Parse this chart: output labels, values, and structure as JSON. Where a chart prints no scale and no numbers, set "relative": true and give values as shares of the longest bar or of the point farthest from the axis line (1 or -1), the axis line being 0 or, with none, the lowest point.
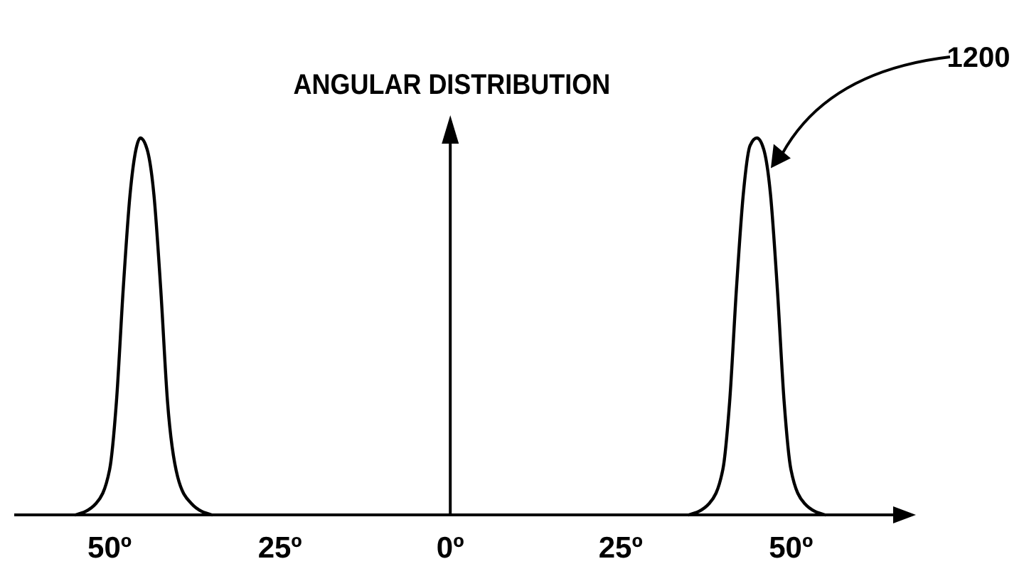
{
  "chart_data": {
    "type": "line",
    "title": "ANGULAR DISTRIBUTION",
    "relative": true,
    "tick_labels": "x",
    "xlim": [
      -64,
      65
    ],
    "xticks": [
      {
        "value": -50,
        "label": "50º"
      },
      {
        "value": -25,
        "label": "25º"
      },
      {
        "value": 0,
        "label": "0º"
      },
      {
        "value": 25,
        "label": "25º"
      },
      {
        "value": 50,
        "label": "50º"
      }
    ],
    "series": [
      {
        "color": "#000000",
        "x": [
          -55,
          -52,
          -50,
          -49,
          -48,
          -47,
          -46,
          -45.5,
          -44.5,
          -43.5,
          -42.5,
          -41.5,
          -40,
          -38,
          -35,
          0,
          35,
          38,
          40,
          41,
          42,
          43,
          44,
          45,
          46,
          47,
          48,
          49,
          50,
          52,
          55
        ],
        "values": [
          0,
          0.03,
          0.12,
          0.3,
          0.6,
          0.85,
          0.98,
          1,
          0.97,
          0.85,
          0.6,
          0.3,
          0.1,
          0.03,
          0,
          null,
          0,
          0.03,
          0.12,
          0.3,
          0.6,
          0.85,
          0.98,
          1,
          0.97,
          0.85,
          0.6,
          0.3,
          0.12,
          0.03,
          0
        ]
      }
    ],
    "annotations": [
      "1200"
    ]
  }
}
